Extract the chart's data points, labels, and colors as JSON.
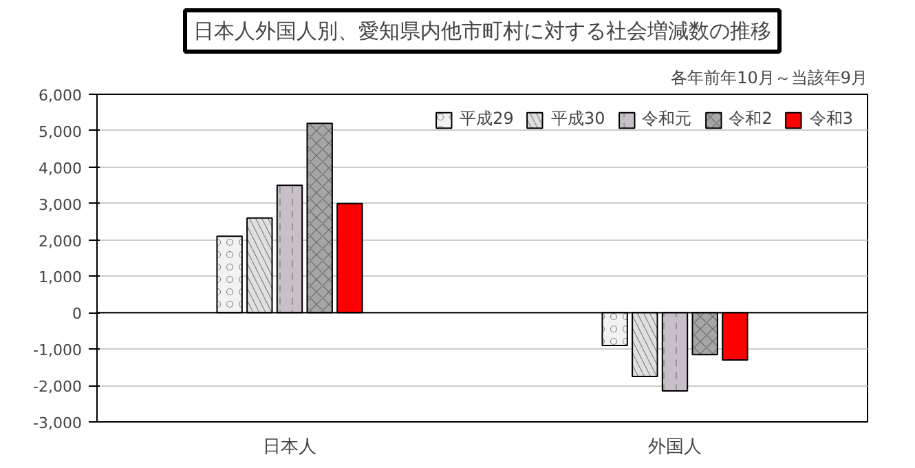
{
  "chart_data": {
    "type": "bar",
    "title": "日本人外国人別、愛知県内他市町村に対する社会増減数の推移",
    "annotations": [
      "各年前年10月～当該年9月"
    ],
    "categories": [
      "日本人",
      "外国人"
    ],
    "series": [
      {
        "name": "平成29",
        "color": "#f2f2f2",
        "values": [
          2100,
          -900
        ]
      },
      {
        "name": "平成30",
        "color": "#e0e0e0",
        "values": [
          2600,
          -1750
        ]
      },
      {
        "name": "令和元",
        "color": "#c8c0c8",
        "values": [
          3500,
          -2150
        ]
      },
      {
        "name": "令和2",
        "color": "#a6a6a6",
        "values": [
          5200,
          -1150
        ]
      },
      {
        "name": "令和3",
        "color": "#ff0000",
        "values": [
          3000,
          -1300
        ]
      }
    ],
    "ylim": [
      -3000,
      6000
    ],
    "yticks": [
      {
        "value": -3000,
        "label": "-3,000"
      },
      {
        "value": -2000,
        "label": "-2,000"
      },
      {
        "value": -1000,
        "label": "-1,000"
      },
      0,
      {
        "value": 1000,
        "label": "1,000"
      },
      {
        "value": 2000,
        "label": "2,000"
      },
      {
        "value": 3000,
        "label": "3,000"
      },
      {
        "value": 4000,
        "label": "4,000"
      },
      {
        "value": 5000,
        "label": "5,000"
      },
      {
        "value": 6000,
        "label": "6,000"
      }
    ],
    "grid": "y",
    "legend": "top right"
  }
}
